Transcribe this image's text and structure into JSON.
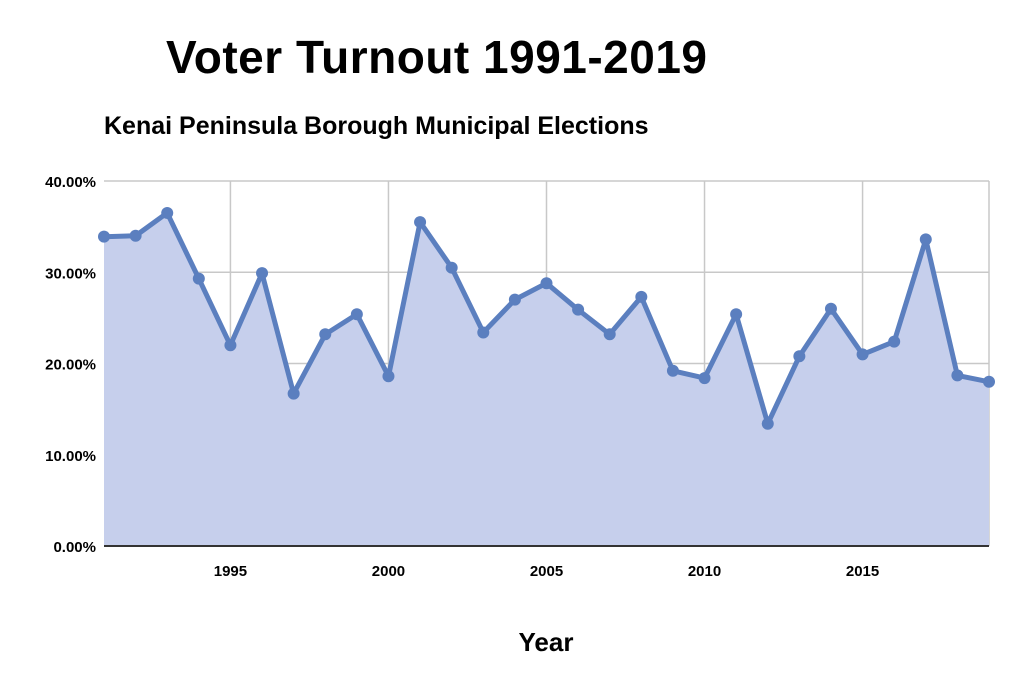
{
  "chart_data": {
    "type": "area",
    "title": "Voter Turnout 1991-2019",
    "subtitle": "Kenai Peninsula Borough Municipal Elections",
    "xlabel": "Year",
    "ylabel": "",
    "x": [
      1991,
      1992,
      1993,
      1994,
      1995,
      1996,
      1997,
      1998,
      1999,
      2000,
      2001,
      2002,
      2003,
      2004,
      2005,
      2006,
      2007,
      2008,
      2009,
      2010,
      2011,
      2012,
      2013,
      2014,
      2015,
      2016,
      2017,
      2018,
      2019
    ],
    "series": [
      {
        "values": [
          33.9,
          34.0,
          36.5,
          29.3,
          22.0,
          29.9,
          16.7,
          23.2,
          25.4,
          18.6,
          35.5,
          30.5,
          23.4,
          27.0,
          28.8,
          25.9,
          23.2,
          27.3,
          19.2,
          18.4,
          25.4,
          13.4,
          20.8,
          26.0,
          21.0,
          22.4,
          33.6,
          18.7,
          18.0
        ]
      }
    ],
    "xlim": [
      1991,
      2019
    ],
    "ylim": [
      0,
      40
    ],
    "x_ticks": [
      "1995",
      "2000",
      "2005",
      "2010",
      "2015"
    ],
    "y_ticks": [
      "0.00%",
      "10.00%",
      "20.00%",
      "30.00%",
      "40.00%"
    ],
    "grid": true,
    "legend": "none",
    "colors": {
      "line": "#5b7fbf",
      "fill": "#c6cfec",
      "grid": "#c8c8c8",
      "axis": "#333333"
    }
  }
}
